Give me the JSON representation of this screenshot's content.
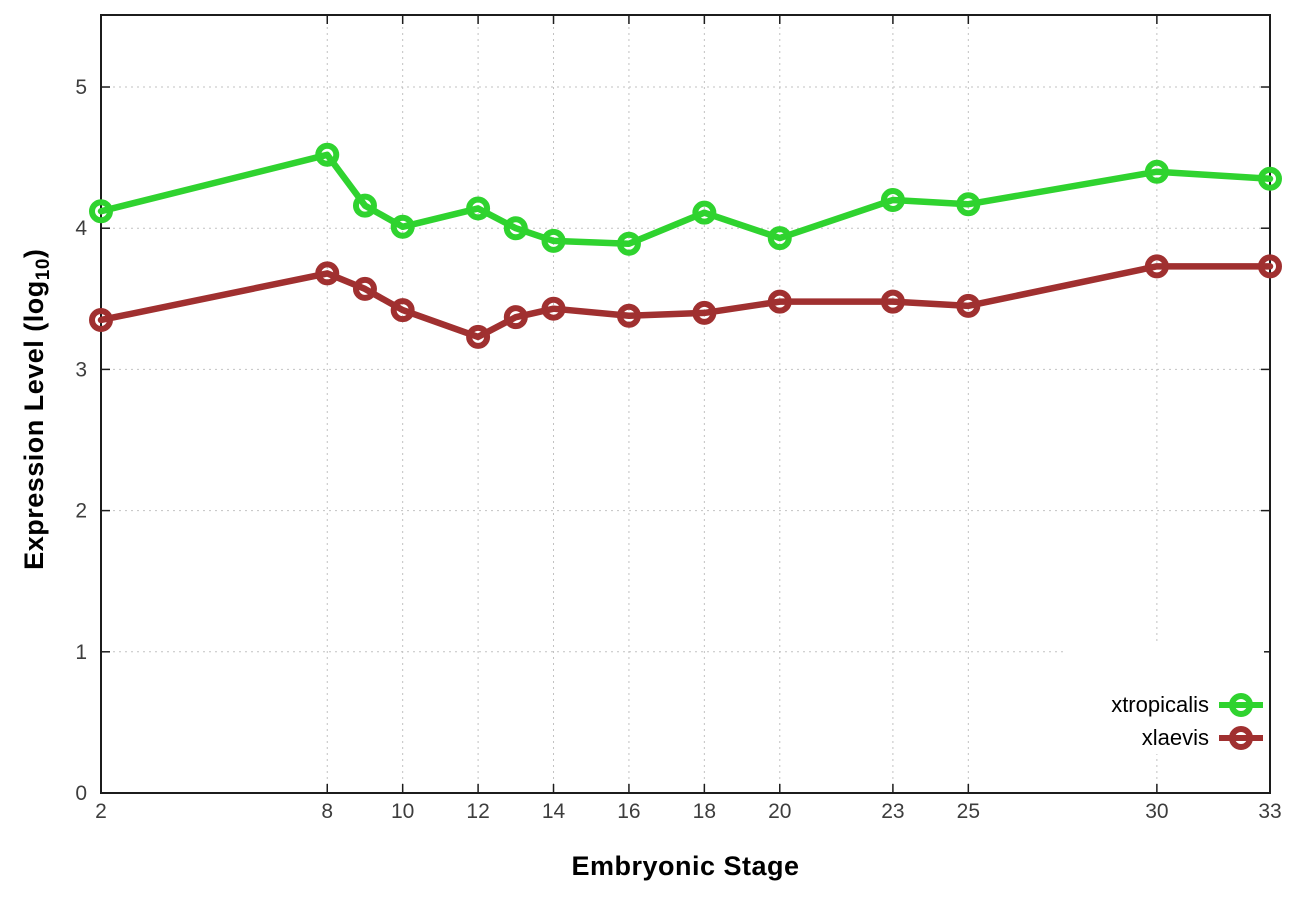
{
  "figure": {
    "xlabel": "Embryonic Stage",
    "ylabel_prefix": "Expression Level (log",
    "ylabel_sub": "10",
    "ylabel_suffix": ")"
  },
  "chart_data": {
    "type": "line",
    "title": "",
    "xlabel": "Embryonic Stage",
    "ylabel": "Expression Level (log10)",
    "x": [
      2,
      8,
      9,
      10,
      12,
      13,
      14,
      16,
      18,
      20,
      23,
      25,
      30,
      33
    ],
    "series": [
      {
        "name": "xtropicalis",
        "color": "#2fd32f",
        "values": [
          4.12,
          4.52,
          4.16,
          4.01,
          4.14,
          4.0,
          3.91,
          3.89,
          4.11,
          3.93,
          4.2,
          4.17,
          4.4,
          4.35
        ]
      },
      {
        "name": "xlaevis",
        "color": "#a03030",
        "values": [
          3.35,
          3.68,
          3.57,
          3.42,
          3.23,
          3.37,
          3.43,
          3.38,
          3.4,
          3.48,
          3.48,
          3.45,
          3.73,
          3.73
        ]
      }
    ],
    "x_ticks": [
      2,
      8,
      10,
      12,
      14,
      16,
      18,
      20,
      23,
      25,
      30,
      33
    ],
    "y_ticks": [
      0,
      1,
      2,
      3,
      4,
      5
    ],
    "xlim": [
      2,
      33
    ],
    "ylim": [
      0,
      5.51
    ],
    "grid": true,
    "grid_style": "dotted",
    "marker": "open-circle",
    "legend_position": "bottom-right",
    "colors": {
      "axis": "#1c1c1c",
      "grid": "#c2c2c2",
      "tick_text": "#3d3d3d"
    }
  }
}
